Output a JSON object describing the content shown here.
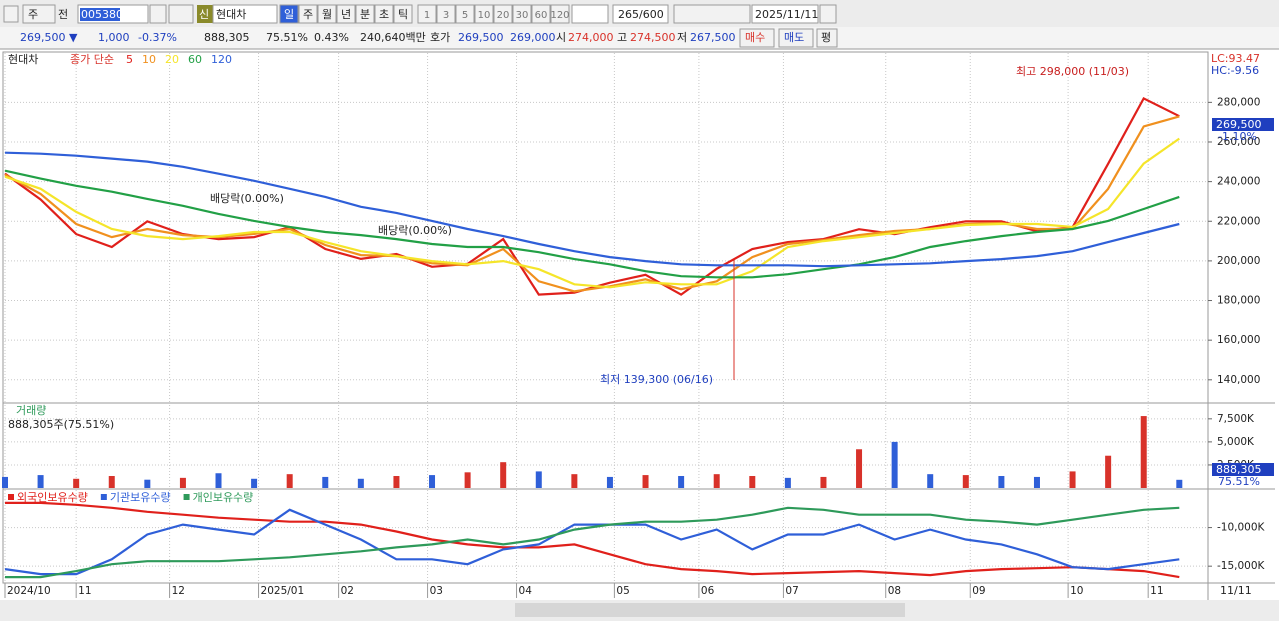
{
  "toolbar": {
    "market": "주",
    "prev": "전",
    "code": "005380",
    "badge": "신",
    "name": "현대차",
    "periods": [
      "일",
      "주",
      "월",
      "년",
      "분",
      "초",
      "틱"
    ],
    "intervals": [
      "1",
      "3",
      "5",
      "10",
      "20",
      "30",
      "60",
      "120"
    ],
    "count": "265/600",
    "date": "2025/11/11"
  },
  "quote": {
    "price": "269,500 ▼",
    "change": "1,000",
    "change_pct": "-0.37%",
    "volume": "888,305",
    "volume_ratio": "75.51%",
    "turnover_pct": "0.43%",
    "amount": "240,640백만",
    "ask_label": "호가",
    "ask": "269,500",
    "bid": "269,000",
    "open_label": "시",
    "open": "274,000",
    "high_label": "고",
    "high": "274,500",
    "low_label": "저",
    "low": "267,500",
    "buy": "매수",
    "sell": "매도",
    "avg": "평"
  },
  "x_cursor": "11/11",
  "chart_data": [
    {
      "type": "line",
      "title": "현대차",
      "legend_title": "종가 단순",
      "corner_labels": [
        "LC:93.47",
        "HC:-9.56"
      ],
      "annotations": {
        "high": "최고 298,000 (11/03)",
        "low": "최저 139,300 (06/16)",
        "dividend": [
          "배당락(0.00%)",
          "배당락(0.00%)"
        ],
        "last_price": "269,500",
        "last_change": "-1.10%"
      },
      "x": [
        0,
        8,
        16,
        24,
        32,
        40,
        48,
        56,
        64,
        72,
        80,
        88,
        96,
        104,
        112,
        120,
        128,
        136,
        144,
        152,
        160,
        168,
        176,
        184,
        192,
        200,
        208,
        216,
        224,
        232,
        240,
        248,
        256,
        264
      ],
      "xlim": [
        0,
        270
      ],
      "xticks": [
        {
          "value": 0,
          "label": "2024/10"
        },
        {
          "value": 16,
          "label": "11"
        },
        {
          "value": 37,
          "label": "12"
        },
        {
          "value": 57,
          "label": "2025/01"
        },
        {
          "value": 75,
          "label": "02"
        },
        {
          "value": 95,
          "label": "03"
        },
        {
          "value": 115,
          "label": "04"
        },
        {
          "value": 137,
          "label": "05"
        },
        {
          "value": 156,
          "label": "06"
        },
        {
          "value": 175,
          "label": "07"
        },
        {
          "value": 198,
          "label": "08"
        },
        {
          "value": 217,
          "label": "09"
        },
        {
          "value": 239,
          "label": "10"
        },
        {
          "value": 257,
          "label": "11"
        }
      ],
      "ylim": [
        128800,
        304900
      ],
      "yticks": [
        {
          "value": 140000,
          "label": "140,000"
        },
        {
          "value": 160000,
          "label": "160,000"
        },
        {
          "value": 180000,
          "label": "180,000"
        },
        {
          "value": 200000,
          "label": "200,000"
        },
        {
          "value": 220000,
          "label": "220,000"
        },
        {
          "value": 240000,
          "label": "240,000"
        },
        {
          "value": 260000,
          "label": "260,000"
        },
        {
          "value": 280000,
          "label": "280,000"
        }
      ],
      "grid": true,
      "series": [
        {
          "name": "5",
          "color": "#e0201b",
          "values": [
            244000,
            231000,
            213500,
            207000,
            220000,
            213500,
            211000,
            212000,
            217000,
            206000,
            201000,
            203500,
            197000,
            198500,
            211000,
            183000,
            184000,
            189000,
            193000,
            183000,
            196000,
            206000,
            209500,
            211000,
            216000,
            213500,
            217000,
            220000,
            220000,
            215000,
            217000,
            249000,
            282000,
            273000
          ]
        },
        {
          "name": "10",
          "color": "#f0901e",
          "values": [
            243500,
            233800,
            218600,
            212000,
            216100,
            213000,
            212000,
            213600,
            216100,
            208000,
            202900,
            202400,
            198800,
            197800,
            206000,
            189700,
            184600,
            187200,
            190700,
            185700,
            189700,
            201900,
            208500,
            210500,
            213000,
            215100,
            216100,
            218600,
            219100,
            216100,
            216100,
            236400,
            267800,
            272900
          ]
        },
        {
          "name": "20",
          "color": "#f5e52a",
          "values": [
            242500,
            236400,
            224700,
            216100,
            212500,
            211000,
            212500,
            214600,
            214600,
            209500,
            204900,
            202400,
            199900,
            198300,
            199900,
            195800,
            188200,
            186700,
            189200,
            188200,
            188200,
            194800,
            207000,
            210000,
            212000,
            214100,
            216100,
            218100,
            218600,
            218600,
            217100,
            226200,
            249100,
            261700
          ]
        },
        {
          "name": "60",
          "color": "#22a046",
          "values": [
            245500,
            241500,
            237900,
            234900,
            231300,
            227800,
            223700,
            220200,
            217100,
            214600,
            213000,
            211000,
            208500,
            207000,
            207000,
            204400,
            200900,
            198300,
            194800,
            192300,
            191700,
            191700,
            193300,
            195800,
            198300,
            201900,
            207000,
            210000,
            212500,
            214600,
            216100,
            220200,
            226200,
            232300
          ]
        },
        {
          "name": "120",
          "color": "#2f5fd8",
          "values": [
            254600,
            254100,
            253100,
            251600,
            250100,
            247500,
            244000,
            240400,
            236400,
            232300,
            227300,
            224200,
            220200,
            216100,
            212500,
            208500,
            204900,
            201900,
            199900,
            198300,
            197800,
            197800,
            197800,
            197300,
            197800,
            198300,
            198800,
            199900,
            200900,
            202400,
            204900,
            209500,
            214100,
            218600
          ]
        }
      ]
    },
    {
      "type": "bar",
      "title": "거래량",
      "subtitle": "888,305주(75.51%)",
      "annotations": {
        "last_volume": "888,305",
        "last_ratio": "75.51%"
      },
      "x": [
        0,
        8,
        16,
        24,
        32,
        40,
        48,
        56,
        64,
        72,
        80,
        88,
        96,
        104,
        112,
        120,
        128,
        136,
        144,
        152,
        160,
        168,
        176,
        184,
        192,
        200,
        208,
        216,
        224,
        232,
        240,
        248,
        256,
        264
      ],
      "xlim": [
        0,
        270
      ],
      "ylim": [
        0,
        9000000
      ],
      "yticks": [
        {
          "value": 2500000,
          "label": "2,500K"
        },
        {
          "value": 5000000,
          "label": "5,000K"
        },
        {
          "value": 7500000,
          "label": "7,500K"
        }
      ],
      "grid": true,
      "values": [
        1200000,
        1400000,
        1000000,
        1300000,
        900000,
        1100000,
        1600000,
        1000000,
        1500000,
        1200000,
        1000000,
        1300000,
        1400000,
        1700000,
        2800000,
        1800000,
        1500000,
        1200000,
        1400000,
        1300000,
        1500000,
        1300000,
        1100000,
        1200000,
        4200000,
        5000000,
        1500000,
        1400000,
        1300000,
        1200000,
        1800000,
        3500000,
        7800000,
        888305
      ],
      "colors": [
        "#2f5fd8",
        "#2f5fd8",
        "#d8322a",
        "#d8322a",
        "#2f5fd8",
        "#d8322a",
        "#2f5fd8",
        "#2f5fd8",
        "#d8322a",
        "#2f5fd8",
        "#2f5fd8",
        "#d8322a",
        "#2f5fd8",
        "#d8322a",
        "#d8322a",
        "#2f5fd8",
        "#d8322a",
        "#2f5fd8",
        "#d8322a",
        "#2f5fd8",
        "#d8322a",
        "#d8322a",
        "#2f5fd8",
        "#d8322a",
        "#d8322a",
        "#2f5fd8",
        "#2f5fd8",
        "#d8322a",
        "#2f5fd8",
        "#2f5fd8",
        "#d8322a",
        "#d8322a",
        "#d8322a",
        "#2f5fd8"
      ]
    },
    {
      "type": "line",
      "x": [
        0,
        8,
        16,
        24,
        32,
        40,
        48,
        56,
        64,
        72,
        80,
        88,
        96,
        104,
        112,
        120,
        128,
        136,
        144,
        152,
        160,
        168,
        176,
        184,
        192,
        200,
        208,
        216,
        224,
        232,
        240,
        248,
        256,
        264
      ],
      "xlim": [
        0,
        270
      ],
      "ylim": [
        -17050000,
        -5130000
      ],
      "yticks": [
        {
          "value": -10000000,
          "label": "-10,000K"
        },
        {
          "value": -15000000,
          "label": "-15,000K"
        }
      ],
      "grid": true,
      "series": [
        {
          "name": "외국인보유수량",
          "color": "#e0201b",
          "values": [
            -6795000,
            -6795000,
            -7051000,
            -7436000,
            -7949000,
            -8333000,
            -8718000,
            -8974000,
            -9231000,
            -9231000,
            -9615000,
            -10513000,
            -11538000,
            -12179000,
            -12564000,
            -12564000,
            -12179000,
            -13462000,
            -14744000,
            -15385000,
            -15641000,
            -16026000,
            -15897000,
            -15769000,
            -15641000,
            -15897000,
            -16154000,
            -15641000,
            -15385000,
            -15256000,
            -15128000,
            -15385000,
            -15641000,
            -16410000
          ]
        },
        {
          "name": "기관보유수량",
          "color": "#2f5fd8",
          "values": [
            -15385000,
            -16026000,
            -16026000,
            -14103000,
            -10897000,
            -9615000,
            -10256000,
            -10897000,
            -7692000,
            -9615000,
            -11538000,
            -14103000,
            -14103000,
            -14744000,
            -12821000,
            -12179000,
            -9615000,
            -9615000,
            -9615000,
            -11538000,
            -10256000,
            -12821000,
            -10897000,
            -10897000,
            -9615000,
            -11538000,
            -10256000,
            -11538000,
            -12179000,
            -13462000,
            -15128000,
            -15385000,
            -14744000,
            -14103000
          ]
        },
        {
          "name": "개인보유수량",
          "color": "#2e9a5a",
          "values": [
            -16410000,
            -16410000,
            -15641000,
            -14744000,
            -14359000,
            -14359000,
            -14359000,
            -14103000,
            -13846000,
            -13462000,
            -13077000,
            -12564000,
            -12179000,
            -11538000,
            -12179000,
            -11538000,
            -10256000,
            -9615000,
            -9231000,
            -9231000,
            -8974000,
            -8333000,
            -7436000,
            -7692000,
            -8333000,
            -8333000,
            -8333000,
            -8974000,
            -9231000,
            -9615000,
            -8974000,
            -8333000,
            -7692000,
            -7436000
          ]
        }
      ]
    }
  ]
}
